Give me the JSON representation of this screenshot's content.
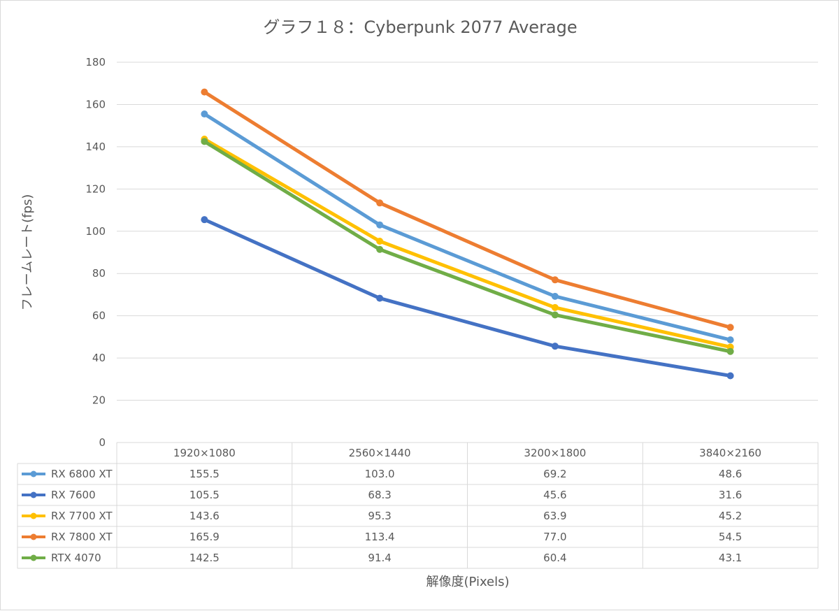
{
  "chart_data": {
    "type": "line",
    "title": "グラフ１８：Cyberpunk 2077 Average",
    "xlabel": "解像度(Pixels)",
    "ylabel": "フレームレート(fps)",
    "ylim": [
      0,
      180
    ],
    "yticks": [
      0,
      20,
      40,
      60,
      80,
      100,
      120,
      140,
      160,
      180
    ],
    "grid": true,
    "legend_placement": "data-table",
    "categories": [
      "1920×1080",
      "2560×1440",
      "3200×1800",
      "3840×2160"
    ],
    "series": [
      {
        "name": "RX 6800 XT",
        "color": "#5b9bd5",
        "values": [
          155.5,
          103.0,
          69.2,
          48.6
        ],
        "labels": [
          "155.5",
          "103.0",
          "69.2",
          "48.6"
        ]
      },
      {
        "name": "RX 7600",
        "color": "#4472c4",
        "values": [
          105.5,
          68.3,
          45.6,
          31.6
        ],
        "labels": [
          "105.5",
          "68.3",
          "45.6",
          "31.6"
        ]
      },
      {
        "name": "RX 7700 XT",
        "color": "#ffc000",
        "values": [
          143.6,
          95.3,
          63.9,
          45.2
        ],
        "labels": [
          "143.6",
          "95.3",
          "63.9",
          "45.2"
        ]
      },
      {
        "name": "RX 7800 XT",
        "color": "#ed7d31",
        "values": [
          165.9,
          113.4,
          77.0,
          54.5
        ],
        "labels": [
          "165.9",
          "113.4",
          "77.0",
          "54.5"
        ]
      },
      {
        "name": "RTX 4070",
        "color": "#70ad47",
        "values": [
          142.5,
          91.4,
          60.4,
          43.1
        ],
        "labels": [
          "142.5",
          "91.4",
          "60.4",
          "43.1"
        ]
      }
    ]
  }
}
